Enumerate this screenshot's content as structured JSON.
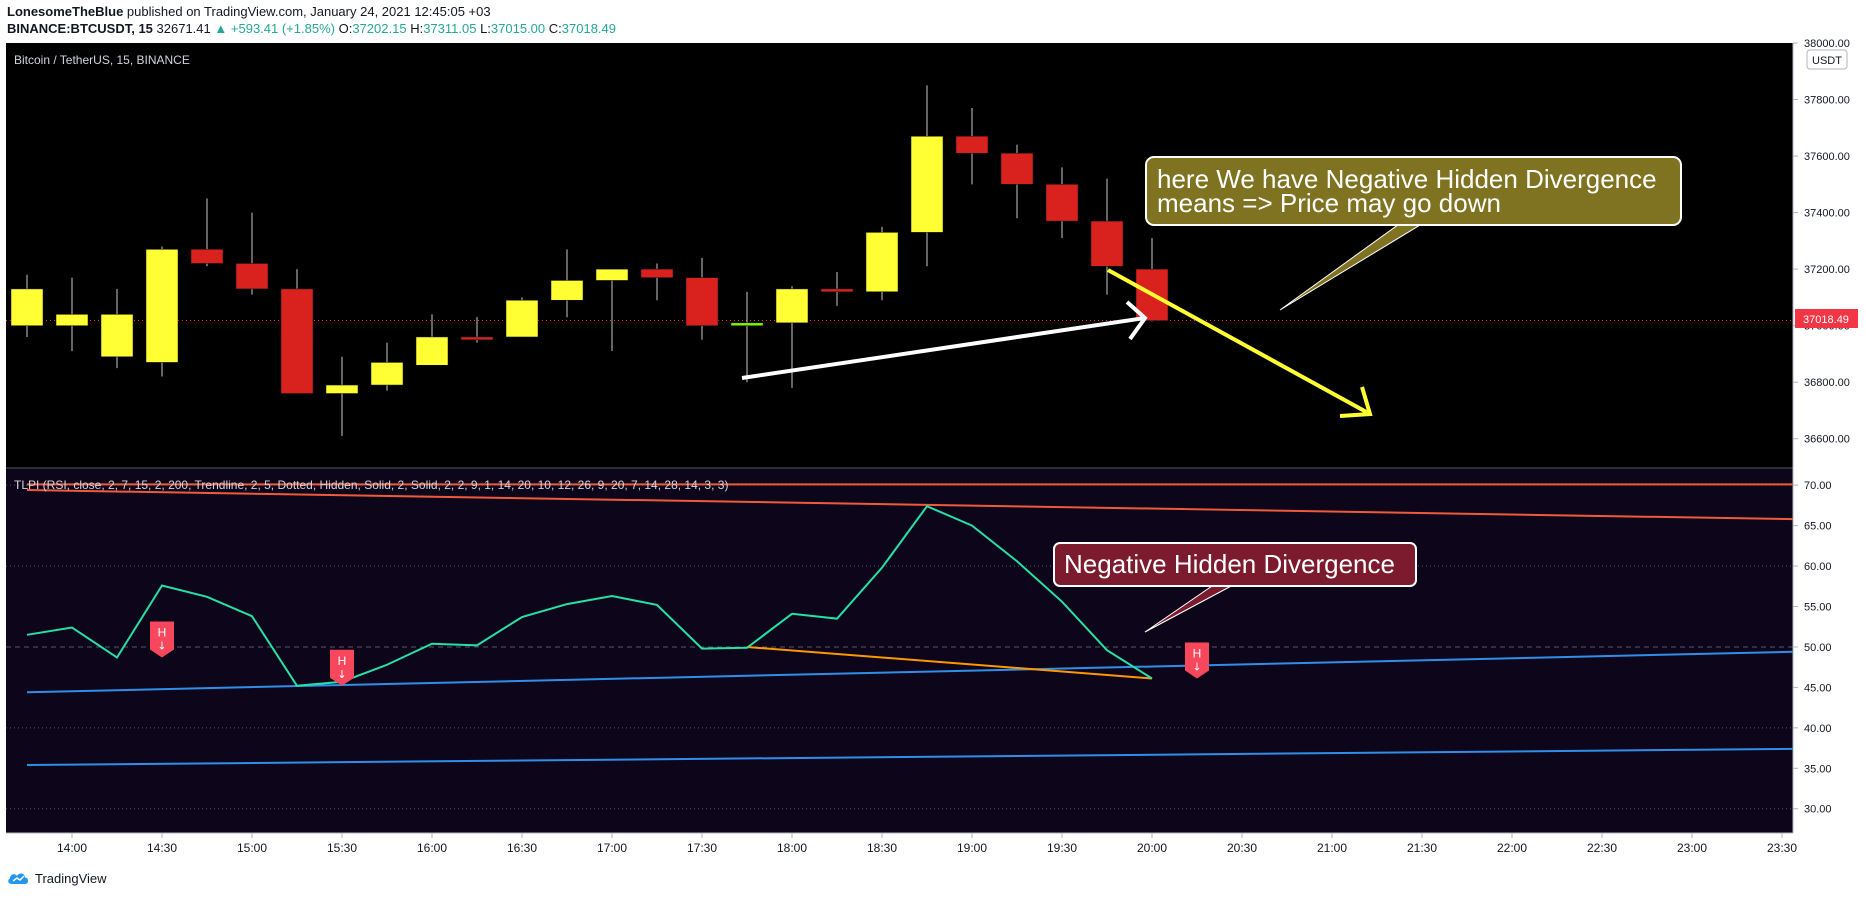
{
  "header": {
    "author": "LonesomeTheBlue",
    "published": "published on TradingView.com, January 24, 2021 12:45:05 +03",
    "symbol": "BINANCE:BTCUSDT, 15",
    "last": "32671.41",
    "change_arrow": "▲",
    "change": "+593.41 (+1.85%)",
    "o_label": "O:",
    "o": "37202.15",
    "h_label": "H:",
    "h": "37311.05",
    "l_label": "L:",
    "l": "37015.00",
    "c_label": "C:",
    "c": "37018.49"
  },
  "footer": {
    "brand": "TradingView",
    "brand_icon": "tradingview-cloud-icon"
  },
  "chart_data": [
    {
      "type": "candlestick",
      "title": "Bitcoin / TetherUS, 15, BINANCE",
      "currency": "USDT",
      "last_price": "37018.49",
      "ylim": [
        36500,
        38000
      ],
      "yticks": [
        "38000.00",
        "37800.00",
        "37600.00",
        "37400.00",
        "37200.00",
        "37000.00",
        "36800.00",
        "36600.00"
      ],
      "xticks": [
        "14:00",
        "14:30",
        "15:00",
        "15:30",
        "16:00",
        "16:30",
        "17:00",
        "17:30",
        "18:00",
        "18:30",
        "19:00",
        "19:30",
        "20:00",
        "20:30",
        "21:00",
        "21:30",
        "22:00",
        "22:30",
        "23:00",
        "23:30"
      ],
      "x_start": "13:45",
      "colors": {
        "up": "#ffff33",
        "down": "#d9211e",
        "neutral": "#7cfc00",
        "last_price": "#f23645"
      },
      "candles": [
        {
          "t": "13:45",
          "o": 37000,
          "h": 37180,
          "l": 36960,
          "c": 37130
        },
        {
          "t": "14:00",
          "o": 37000,
          "h": 37170,
          "l": 36910,
          "c": 37040
        },
        {
          "t": "14:15",
          "o": 36890,
          "h": 37130,
          "l": 36850,
          "c": 37040
        },
        {
          "t": "14:30",
          "o": 36870,
          "h": 37280,
          "l": 36820,
          "c": 37270
        },
        {
          "t": "14:45",
          "o": 37270,
          "h": 37450,
          "l": 37210,
          "c": 37220
        },
        {
          "t": "15:00",
          "o": 37220,
          "h": 37400,
          "l": 37110,
          "c": 37130
        },
        {
          "t": "15:15",
          "o": 37130,
          "h": 37200,
          "l": 36760,
          "c": 36760
        },
        {
          "t": "15:30",
          "o": 36760,
          "h": 36890,
          "l": 36610,
          "c": 36790
        },
        {
          "t": "15:45",
          "o": 36790,
          "h": 36940,
          "l": 36770,
          "c": 36870
        },
        {
          "t": "16:00",
          "o": 36860,
          "h": 37040,
          "l": 36860,
          "c": 36960
        },
        {
          "t": "16:15",
          "o": 36960,
          "h": 37030,
          "l": 36940,
          "c": 36950
        },
        {
          "t": "16:30",
          "o": 36960,
          "h": 37100,
          "l": 36960,
          "c": 37090
        },
        {
          "t": "16:45",
          "o": 37090,
          "h": 37270,
          "l": 37030,
          "c": 37160
        },
        {
          "t": "17:00",
          "o": 37160,
          "h": 37200,
          "l": 36910,
          "c": 37200
        },
        {
          "t": "17:15",
          "o": 37200,
          "h": 37220,
          "l": 37090,
          "c": 37170
        },
        {
          "t": "17:30",
          "o": 37170,
          "h": 37240,
          "l": 36950,
          "c": 37000
        },
        {
          "t": "17:45",
          "o": 37000,
          "h": 37120,
          "l": 36800,
          "c": 37010
        },
        {
          "t": "18:00",
          "o": 37010,
          "h": 37140,
          "l": 36780,
          "c": 37130
        },
        {
          "t": "18:15",
          "o": 37130,
          "h": 37190,
          "l": 37070,
          "c": 37120
        },
        {
          "t": "18:30",
          "o": 37120,
          "h": 37350,
          "l": 37090,
          "c": 37330
        },
        {
          "t": "18:45",
          "o": 37330,
          "h": 37850,
          "l": 37210,
          "c": 37670
        },
        {
          "t": "19:00",
          "o": 37670,
          "h": 37770,
          "l": 37500,
          "c": 37610
        },
        {
          "t": "19:15",
          "o": 37610,
          "h": 37640,
          "l": 37380,
          "c": 37500
        },
        {
          "t": "19:30",
          "o": 37500,
          "h": 37560,
          "l": 37310,
          "c": 37370
        },
        {
          "t": "19:45",
          "o": 37370,
          "h": 37520,
          "l": 37110,
          "c": 37210
        },
        {
          "t": "20:00",
          "o": 37200,
          "h": 37310,
          "l": 37015,
          "c": 37018
        }
      ],
      "annotations": [
        {
          "text_lines": [
            "here We have Negative Hidden Divergence",
            "means => Price may go down"
          ],
          "bg": "#7f7322",
          "border": "#ffffff"
        }
      ]
    },
    {
      "type": "line",
      "title": "TLPI (RSI, close, 2, 7, 15, 2, 200, Trendline, 2, 5, Dotted, Hidden, Solid, 2, Solid, 2, 2, 9, 1, 14, 20, 10, 12, 26, 9, 20, 7, 14, 28, 14, 3, 3)",
      "ylim": [
        27,
        72
      ],
      "yticks": [
        "70.00",
        "65.00",
        "60.00",
        "55.00",
        "50.00",
        "45.00",
        "40.00",
        "35.00",
        "30.00"
      ],
      "x": [
        "13:45",
        "14:00",
        "14:15",
        "14:30",
        "14:45",
        "15:00",
        "15:15",
        "15:30",
        "15:45",
        "16:00",
        "16:15",
        "16:30",
        "16:45",
        "17:00",
        "17:15",
        "17:30",
        "17:45",
        "18:00",
        "18:15",
        "18:30",
        "18:45",
        "19:00",
        "19:15",
        "19:30",
        "19:45",
        "20:00"
      ],
      "series": [
        {
          "color": "#26e0a6",
          "values": [
            51.5,
            52.4,
            48.7,
            57.6,
            56.2,
            53.8,
            45.2,
            45.7,
            47.8,
            50.4,
            50.2,
            53.7,
            55.3,
            56.3,
            55.2,
            49.8,
            49.9,
            54.1,
            53.5,
            59.8,
            67.4,
            65.0,
            60.6,
            55.6,
            49.6,
            46.1
          ]
        }
      ],
      "levels": [
        70,
        60,
        50,
        40,
        30
      ],
      "trendlines": [
        {
          "color": "#f05a3c",
          "from": [
            "13:45",
            69.4
          ],
          "to": [
            "23:45",
            65.8
          ]
        },
        {
          "color": "#f05a3c",
          "from": [
            "13:45",
            70.1
          ],
          "to": [
            "23:45",
            70.1
          ]
        },
        {
          "color": "#2f8fe8",
          "from": [
            "13:45",
            44.4
          ],
          "to": [
            "23:45",
            49.4
          ]
        },
        {
          "color": "#2f8fe8",
          "from": [
            "13:45",
            35.4
          ],
          "to": [
            "23:45",
            37.4
          ]
        },
        {
          "color": "#ff9800",
          "from": [
            "17:45",
            50.0
          ],
          "to": [
            "20:00",
            46.1
          ]
        }
      ],
      "markers": [
        {
          "t": "14:30",
          "v": 48.7,
          "label": "H",
          "arrow": "↓"
        },
        {
          "t": "15:30",
          "v": 45.2,
          "label": "H",
          "arrow": "↓"
        },
        {
          "t": "20:15",
          "v": 46.1,
          "label": "H",
          "arrow": "↓"
        }
      ],
      "annotations": [
        {
          "text": "Negative Hidden Divergence",
          "bg": "#7b1b2d",
          "border": "#ffffff"
        }
      ]
    }
  ]
}
